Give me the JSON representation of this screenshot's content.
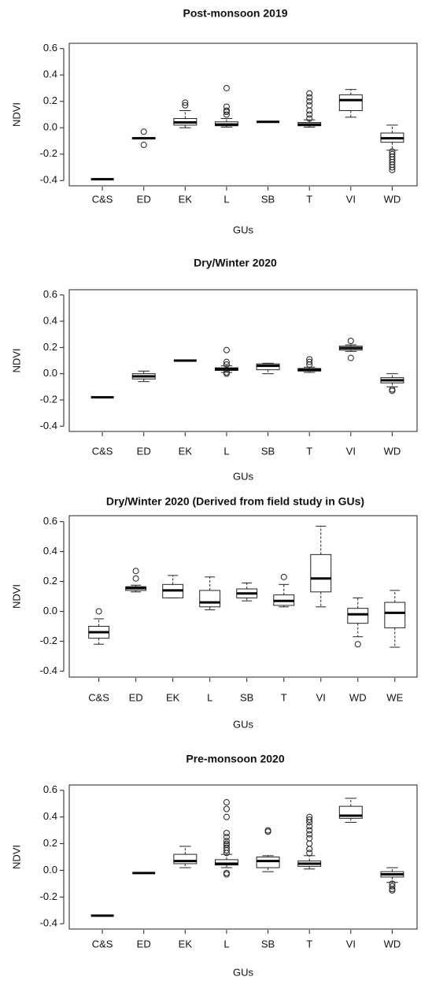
{
  "chart_data": [
    {
      "type": "box",
      "title": "Post-monsoon 2019",
      "x_label": "GUs",
      "y_label": "NDVI",
      "categories": [
        "C&S",
        "ED",
        "EK",
        "L",
        "SB",
        "T",
        "VI",
        "WD"
      ],
      "min": [
        -0.39,
        -0.085,
        0.0,
        0.005,
        0.045,
        0.005,
        0.08,
        -0.17
      ],
      "q1": [
        -0.39,
        -0.085,
        0.02,
        0.015,
        0.045,
        0.015,
        0.13,
        -0.11
      ],
      "median": [
        -0.39,
        -0.08,
        0.04,
        0.025,
        0.045,
        0.025,
        0.21,
        -0.08
      ],
      "q3": [
        -0.39,
        -0.075,
        0.07,
        0.045,
        0.045,
        0.04,
        0.25,
        -0.04
      ],
      "max": [
        -0.39,
        -0.075,
        0.13,
        0.07,
        0.045,
        0.06,
        0.29,
        0.02
      ],
      "outliers": [
        [],
        [
          -0.03,
          -0.13
        ],
        [
          0.17,
          0.19
        ],
        [
          0.1,
          0.12,
          0.13,
          0.16,
          0.3
        ],
        [],
        [
          0.07,
          0.1,
          0.13,
          0.17,
          0.2,
          0.23,
          0.26
        ],
        [],
        [
          -0.18,
          -0.2,
          -0.22,
          -0.24,
          -0.26,
          -0.28,
          -0.3,
          -0.32
        ]
      ],
      "ylim": [
        -0.44,
        0.64
      ],
      "yticks": [
        -0.4,
        -0.2,
        {
          "value": 0,
          "label": "0.0"
        },
        0.2,
        0.4,
        0.6
      ]
    },
    {
      "type": "box",
      "title": "Dry/Winter 2020",
      "x_label": "GUs",
      "y_label": "NDVI",
      "categories": [
        "C&S",
        "ED",
        "EK",
        "L",
        "SB",
        "T",
        "VI",
        "WD"
      ],
      "min": [
        -0.18,
        -0.06,
        0.1,
        0.01,
        0.0,
        0.01,
        0.17,
        -0.1
      ],
      "q1": [
        -0.18,
        -0.04,
        0.1,
        0.025,
        0.03,
        0.02,
        0.18,
        -0.07
      ],
      "median": [
        -0.18,
        -0.02,
        0.1,
        0.035,
        0.06,
        0.03,
        0.195,
        -0.05
      ],
      "q3": [
        -0.18,
        0.0,
        0.1,
        0.045,
        0.075,
        0.04,
        0.21,
        -0.03
      ],
      "max": [
        -0.18,
        0.02,
        0.1,
        0.06,
        0.08,
        0.05,
        0.22,
        0.0
      ],
      "outliers": [
        [],
        [],
        [],
        [
          0.0,
          0.01,
          0.07,
          0.09,
          0.18
        ],
        [],
        [
          0.07,
          0.09,
          0.11
        ],
        [
          0.12,
          0.25
        ],
        [
          -0.12,
          -0.13
        ]
      ],
      "ylim": [
        -0.44,
        0.64
      ],
      "yticks": [
        -0.4,
        -0.2,
        {
          "value": 0,
          "label": "0.0"
        },
        0.2,
        0.4,
        0.6
      ]
    },
    {
      "type": "box",
      "title": "Dry/Winter 2020 (Derived from field study in GUs)",
      "x_label": "GUs",
      "y_label": "NDVI",
      "categories": [
        "C&S",
        "ED",
        "EK",
        "L",
        "SB",
        "T",
        "VI",
        "WD",
        "WE"
      ],
      "min": [
        -0.22,
        0.13,
        0.09,
        0.01,
        0.07,
        0.03,
        0.03,
        -0.17,
        -0.24
      ],
      "q1": [
        -0.18,
        0.14,
        0.09,
        0.03,
        0.09,
        0.04,
        0.13,
        -0.08,
        -0.11
      ],
      "median": [
        -0.14,
        0.155,
        0.14,
        0.06,
        0.12,
        0.07,
        0.22,
        -0.02,
        -0.01
      ],
      "q3": [
        -0.1,
        0.165,
        0.18,
        0.14,
        0.15,
        0.11,
        0.38,
        0.02,
        0.06
      ],
      "max": [
        -0.05,
        0.175,
        0.24,
        0.23,
        0.19,
        0.18,
        0.57,
        0.09,
        0.14
      ],
      "outliers": [
        [
          0.0
        ],
        [
          0.22,
          0.27
        ],
        [],
        [],
        [],
        [
          0.23
        ],
        [],
        [
          -0.22
        ],
        []
      ],
      "ylim": [
        -0.44,
        0.64
      ],
      "yticks": [
        -0.4,
        -0.2,
        {
          "value": 0,
          "label": "0.0"
        },
        0.2,
        0.4,
        0.6
      ]
    },
    {
      "type": "box",
      "title": "Pre-monsoon 2020",
      "x_label": "GUs",
      "y_label": "NDVI",
      "categories": [
        "C&S",
        "ED",
        "EK",
        "L",
        "SB",
        "T",
        "VI",
        "WD"
      ],
      "min": [
        -0.34,
        -0.02,
        0.02,
        0.02,
        -0.01,
        0.01,
        0.36,
        -0.09
      ],
      "q1": [
        -0.34,
        -0.02,
        0.05,
        0.04,
        0.02,
        0.03,
        0.39,
        -0.05
      ],
      "median": [
        -0.34,
        -0.02,
        0.07,
        0.05,
        0.07,
        0.05,
        0.41,
        -0.03
      ],
      "q3": [
        -0.34,
        -0.02,
        0.12,
        0.08,
        0.1,
        0.07,
        0.48,
        -0.01
      ],
      "max": [
        -0.34,
        -0.02,
        0.18,
        0.12,
        0.11,
        0.11,
        0.54,
        0.02
      ],
      "outliers": [
        [],
        [],
        [],
        [
          -0.03,
          -0.02,
          0.13,
          0.15,
          0.17,
          0.19,
          0.2,
          0.22,
          0.25,
          0.28,
          0.4,
          0.46,
          0.51
        ],
        [
          0.29,
          0.3
        ],
        [
          0.13,
          0.16,
          0.2,
          0.24,
          0.27,
          0.3,
          0.33,
          0.36,
          0.38,
          0.4
        ],
        [],
        [
          -0.1,
          -0.12,
          -0.14,
          -0.15
        ]
      ],
      "ylim": [
        -0.44,
        0.64
      ],
      "yticks": [
        -0.4,
        -0.2,
        {
          "value": 0,
          "label": "0.0"
        },
        0.2,
        0.4,
        0.6
      ]
    }
  ]
}
